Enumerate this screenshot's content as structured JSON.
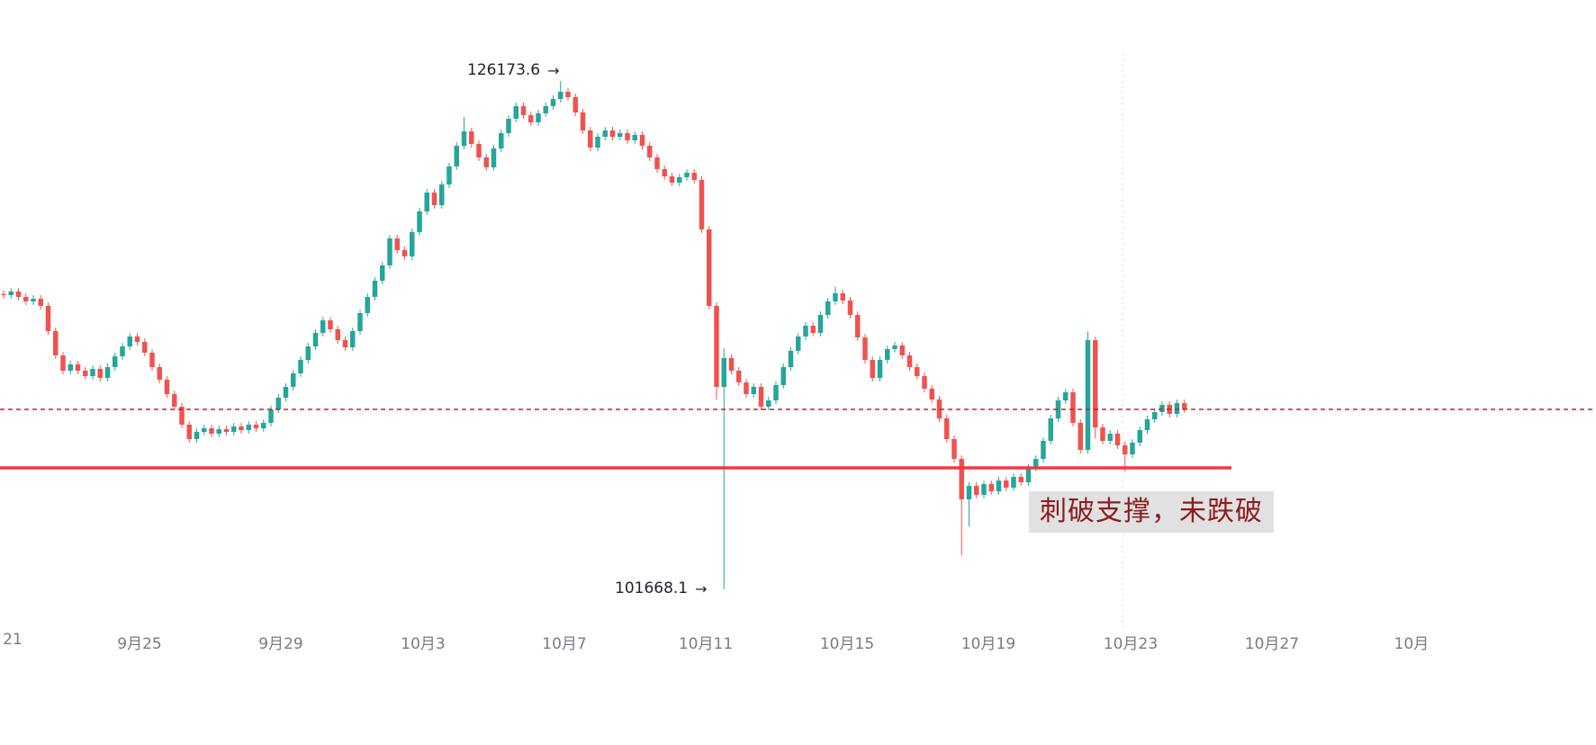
{
  "chart_data": {
    "type": "candlestick",
    "title": "",
    "colors": {
      "up": "#26a69a",
      "down": "#ef5350"
    },
    "high_label": {
      "text": "126173.6",
      "arrow": "→",
      "value": 126173.6
    },
    "low_label": {
      "text": "101668.1",
      "arrow": "→",
      "value": 101668.1
    },
    "support_line": {
      "value": 107523,
      "color": "#f23645",
      "style": "solid"
    },
    "last_price_line": {
      "value": 110343,
      "color": "#b22833",
      "style": "dashed"
    },
    "annotation": {
      "text": "刺破支撑，未跌破",
      "color": "#8b1d22",
      "bg": "#e1e1e1"
    },
    "x_labels": [
      "21",
      "9月25",
      "9月29",
      "10月3",
      "10月7",
      "10月11",
      "10月15",
      "10月19",
      "10月23",
      "10月27",
      "10月"
    ],
    "ylim": [
      100800,
      127000
    ],
    "grid": false,
    "first_open": 115900,
    "closes": [
      115851,
      116025,
      115764,
      115547,
      115677,
      115331,
      114116,
      112945,
      112208,
      112512,
      112208,
      111948,
      112295,
      111861,
      112382,
      112902,
      113379,
      113856,
      113596,
      113076,
      112382,
      111774,
      111081,
      110474,
      109606,
      108912,
      109259,
      109432,
      109172,
      109389,
      109259,
      109519,
      109346,
      109606,
      109432,
      109693,
      110343,
      110908,
      111428,
      112078,
      112728,
      113379,
      114030,
      114637,
      114203,
      113683,
      113336,
      114116,
      114984,
      115764,
      116545,
      117283,
      118584,
      118020,
      117716,
      118888,
      119885,
      120796,
      120189,
      121186,
      122054,
      123051,
      123745,
      123138,
      122488,
      122011,
      122921,
      123659,
      124352,
      124960,
      124526,
      124179,
      124613,
      124960,
      125306,
      125653,
      125393,
      124656,
      123789,
      122965,
      123485,
      123789,
      123485,
      123659,
      123312,
      123572,
      123051,
      122488,
      121924,
      121577,
      121273,
      121534,
      121750,
      121404,
      119018,
      115331,
      111428,
      112815,
      112208,
      111644,
      111081,
      111428,
      110474,
      110777,
      111515,
      112382,
      113162,
      113856,
      114376,
      114030,
      114897,
      115547,
      115938,
      115591,
      114897,
      113813,
      112728,
      111861,
      112728,
      113249,
      113423,
      112945,
      112382,
      111948,
      111341,
      110821,
      109910,
      108912,
      107957,
      106006,
      106657,
      106223,
      106743,
      106396,
      106917,
      106570,
      107090,
      106830,
      107524,
      107957,
      108825,
      109910,
      110777,
      111168,
      109693,
      108391,
      113683,
      109475,
      108825,
      109172,
      108608,
      108174,
      108738,
      109346,
      109866,
      110213,
      110560,
      110126,
      110647,
      110343
    ],
    "wick_overrides": {
      "62": {
        "high": 124440
      },
      "75": {
        "high": 126173.6
      },
      "96": {
        "low": 110800
      },
      "97": {
        "high": 113300,
        "low": 101668.1
      },
      "112": {
        "high": 116260
      },
      "129": {
        "low": 103300
      },
      "130": {
        "low": 104700
      },
      "146": {
        "high": 114100
      },
      "147": {
        "low": 108950
      },
      "151": {
        "low": 107350
      }
    }
  }
}
